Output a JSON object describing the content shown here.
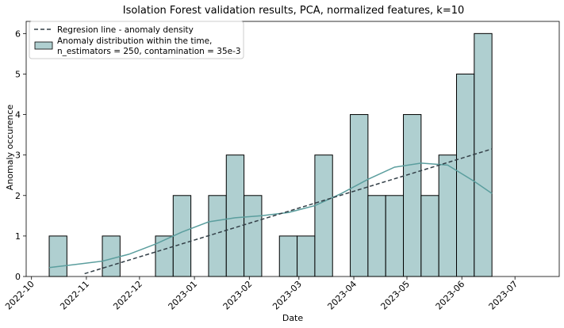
{
  "chart_data": {
    "type": "bar",
    "title": "Isolation Forest validation results, PCA, normalized features, k=10",
    "xlabel": "Date",
    "ylabel": "Anomaly occurence",
    "x_ticks": [
      "2022-10",
      "2022-11",
      "2022-12",
      "2023-01",
      "2023-02",
      "2023-03",
      "2023-04",
      "2023-05",
      "2023-06",
      "2023-07"
    ],
    "y_ticks": [
      0,
      1,
      2,
      3,
      4,
      5,
      6
    ],
    "ylim": [
      0,
      6.3
    ],
    "xlim": [
      "2022-09-28",
      "2023-07-26"
    ],
    "bins": [
      {
        "start": "2022-10-11",
        "end": "2022-10-21",
        "value": 1
      },
      {
        "start": "2022-10-21",
        "end": "2022-10-31",
        "value": 0
      },
      {
        "start": "2022-10-31",
        "end": "2022-11-10",
        "value": 0
      },
      {
        "start": "2022-11-10",
        "end": "2022-11-20",
        "value": 1
      },
      {
        "start": "2022-11-20",
        "end": "2022-11-30",
        "value": 0
      },
      {
        "start": "2022-11-30",
        "end": "2022-12-10",
        "value": 0
      },
      {
        "start": "2022-12-10",
        "end": "2022-12-20",
        "value": 1
      },
      {
        "start": "2022-12-20",
        "end": "2022-12-30",
        "value": 2
      },
      {
        "start": "2022-12-30",
        "end": "2023-01-09",
        "value": 0
      },
      {
        "start": "2023-01-09",
        "end": "2023-01-19",
        "value": 2
      },
      {
        "start": "2023-01-19",
        "end": "2023-01-29",
        "value": 3
      },
      {
        "start": "2023-01-29",
        "end": "2023-02-08",
        "value": 2
      },
      {
        "start": "2023-02-08",
        "end": "2023-02-18",
        "value": 0
      },
      {
        "start": "2023-02-18",
        "end": "2023-02-28",
        "value": 1
      },
      {
        "start": "2023-02-28",
        "end": "2023-03-10",
        "value": 1
      },
      {
        "start": "2023-03-10",
        "end": "2023-03-20",
        "value": 3
      },
      {
        "start": "2023-03-20",
        "end": "2023-03-30",
        "value": 0
      },
      {
        "start": "2023-03-30",
        "end": "2023-04-09",
        "value": 4
      },
      {
        "start": "2023-04-09",
        "end": "2023-04-19",
        "value": 2
      },
      {
        "start": "2023-04-19",
        "end": "2023-04-29",
        "value": 2
      },
      {
        "start": "2023-04-29",
        "end": "2023-05-09",
        "value": 4
      },
      {
        "start": "2023-05-09",
        "end": "2023-05-19",
        "value": 2
      },
      {
        "start": "2023-05-19",
        "end": "2023-05-29",
        "value": 3
      },
      {
        "start": "2023-05-29",
        "end": "2023-06-08",
        "value": 5
      },
      {
        "start": "2023-06-08",
        "end": "2023-06-18",
        "value": 6
      }
    ],
    "kde_curve": {
      "x": [
        "2022-10-11",
        "2022-10-26",
        "2022-11-10",
        "2022-11-25",
        "2022-12-10",
        "2022-12-25",
        "2023-01-09",
        "2023-01-24",
        "2023-02-08",
        "2023-02-23",
        "2023-03-10",
        "2023-03-25",
        "2023-04-09",
        "2023-04-24",
        "2023-05-09",
        "2023-05-24",
        "2023-06-08",
        "2023-06-18"
      ],
      "y": [
        0.22,
        0.3,
        0.38,
        0.55,
        0.8,
        1.1,
        1.35,
        1.45,
        1.5,
        1.58,
        1.75,
        2.05,
        2.4,
        2.7,
        2.8,
        2.75,
        2.35,
        2.05
      ]
    },
    "regression_line": {
      "x": [
        "2022-10-31",
        "2023-06-18"
      ],
      "y": [
        0.07,
        3.15
      ]
    },
    "legend": {
      "position": "top-left",
      "entries": [
        {
          "label": "Regresion line - anomaly density",
          "style": "dashed"
        },
        {
          "label": "Anomaly distribution within the time,\nn_estimators = 250, contamination = 35e-3",
          "style": "patch"
        }
      ]
    },
    "colors": {
      "bar_fill": "#afcfd0",
      "bar_edge": "#000000",
      "kde_line": "#5b9e9e",
      "regression_line": "#333f47"
    },
    "grid": false
  }
}
